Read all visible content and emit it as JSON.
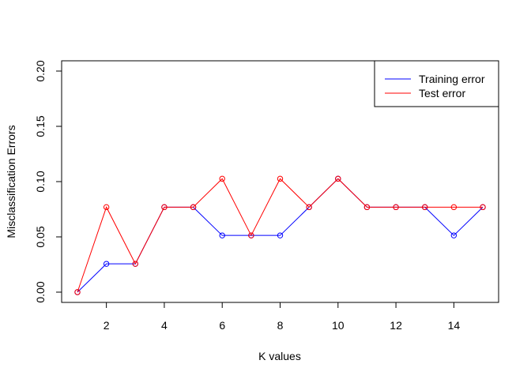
{
  "chart_data": {
    "type": "line",
    "title": "",
    "xlabel": "K values",
    "ylabel": "Misclassification Errors",
    "x": [
      1,
      2,
      3,
      4,
      5,
      6,
      7,
      8,
      9,
      10,
      11,
      12,
      13,
      14,
      15
    ],
    "xlim": [
      1,
      15
    ],
    "ylim": [
      0,
      0.2
    ],
    "x_ticks": [
      2,
      4,
      6,
      8,
      10,
      12,
      14
    ],
    "y_ticks": [
      0,
      0.05,
      0.1,
      0.15,
      0.2
    ],
    "x_tick_labels": [
      "2",
      "4",
      "6",
      "8",
      "10",
      "12",
      "14"
    ],
    "y_tick_labels": [
      "0.00",
      "0.05",
      "0.10",
      "0.15",
      "0.20"
    ],
    "grid": false,
    "legend_position": "top-right",
    "series": [
      {
        "name": "Training error",
        "color": "#0000ff",
        "values": [
          0.0,
          0.0256,
          0.0256,
          0.0769,
          0.0769,
          0.0513,
          0.0513,
          0.0513,
          0.0769,
          0.1026,
          0.0769,
          0.0769,
          0.0769,
          0.0513,
          0.0769
        ]
      },
      {
        "name": "Test error",
        "color": "#ff0000",
        "values": [
          0.0,
          0.0769,
          0.0256,
          0.0769,
          0.0769,
          0.1026,
          0.0513,
          0.1026,
          0.0769,
          0.1026,
          0.0769,
          0.0769,
          0.0769,
          0.0769,
          0.0769
        ]
      }
    ]
  }
}
